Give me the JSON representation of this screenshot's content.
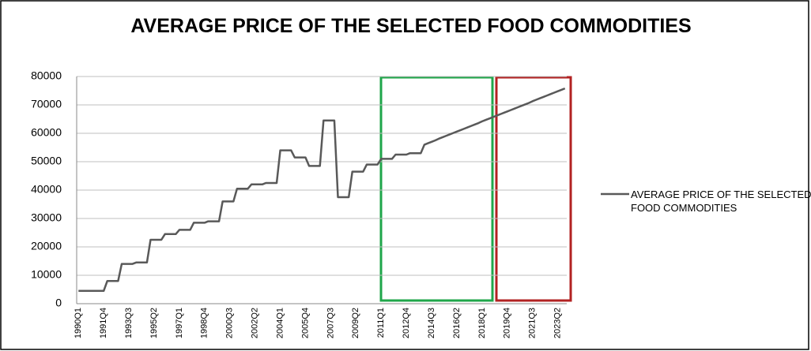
{
  "chart_data": {
    "type": "line",
    "title": "AVERAGE PRICE OF THE  SELECTED FOOD COMMODITIES",
    "categories": [
      "1990Q1",
      null,
      null,
      null,
      null,
      null,
      null,
      "1991Q4",
      null,
      null,
      null,
      null,
      null,
      null,
      "1993Q3",
      null,
      null,
      null,
      null,
      null,
      null,
      "1995Q2",
      null,
      null,
      null,
      null,
      null,
      null,
      "1997Q1",
      null,
      null,
      null,
      null,
      null,
      null,
      "1998Q4",
      null,
      null,
      null,
      null,
      null,
      null,
      "2000Q3",
      null,
      null,
      null,
      null,
      null,
      null,
      "2002Q2",
      null,
      null,
      null,
      null,
      null,
      null,
      "2004Q1",
      null,
      null,
      null,
      null,
      null,
      null,
      "2005Q4",
      null,
      null,
      null,
      null,
      null,
      null,
      "2007Q3",
      null,
      null,
      null,
      null,
      null,
      null,
      "2009Q2",
      null,
      null,
      null,
      null,
      null,
      null,
      "2011Q1",
      null,
      null,
      null,
      null,
      null,
      null,
      "2012Q4",
      null,
      null,
      null,
      null,
      null,
      null,
      "2014Q3",
      null,
      null,
      null,
      null,
      null,
      null,
      "2016Q2",
      null,
      null,
      null,
      null,
      null,
      null,
      "2018Q1",
      null,
      null,
      null,
      null,
      null,
      null,
      "2019Q4",
      null,
      null,
      null,
      null,
      null,
      null,
      "2021Q3",
      null,
      null,
      null,
      null,
      null,
      null,
      "2023Q2",
      null,
      null
    ],
    "series": [
      {
        "name": "AVERAGE PRICE OF THE SELECTED FOOD COMMODITIES",
        "color": "#595959",
        "values": [
          4500,
          4500,
          4500,
          4500,
          4500,
          4500,
          4500,
          4500,
          8000,
          8000,
          8000,
          8000,
          14000,
          14000,
          14000,
          14000,
          14500,
          14500,
          14500,
          14500,
          22500,
          22500,
          22500,
          22500,
          24500,
          24500,
          24500,
          24500,
          26000,
          26000,
          26000,
          26000,
          28500,
          28500,
          28500,
          28500,
          29000,
          29000,
          29000,
          29000,
          36000,
          36000,
          36000,
          36000,
          40500,
          40500,
          40500,
          40500,
          42000,
          42000,
          42000,
          42000,
          42500,
          42500,
          42500,
          42500,
          54000,
          54000,
          54000,
          54000,
          51500,
          51500,
          51500,
          51500,
          48500,
          48500,
          48500,
          48500,
          64500,
          64500,
          64500,
          64500,
          37500,
          37500,
          37500,
          37500,
          46500,
          46500,
          46500,
          46500,
          49000,
          49000,
          49000,
          49000,
          51000,
          51000,
          51000,
          51000,
          52500,
          52500,
          52500,
          52500,
          53000,
          53000,
          53000,
          53000,
          56000,
          56500,
          57000,
          57500,
          58100,
          58600,
          59100,
          59600,
          60100,
          60600,
          61100,
          61600,
          62100,
          62600,
          63100,
          63600,
          64200,
          64700,
          65200,
          65700,
          66200,
          66700,
          67200,
          67700,
          68200,
          68700,
          69200,
          69700,
          70200,
          70700,
          71300,
          71800,
          72300,
          72800,
          73300,
          73800,
          74300,
          74800,
          75300,
          75800
        ]
      }
    ],
    "ylim": [
      0,
      80000
    ],
    "yticks": [
      0,
      10000,
      20000,
      30000,
      40000,
      50000,
      60000,
      70000,
      80000
    ],
    "grid": true
  }
}
